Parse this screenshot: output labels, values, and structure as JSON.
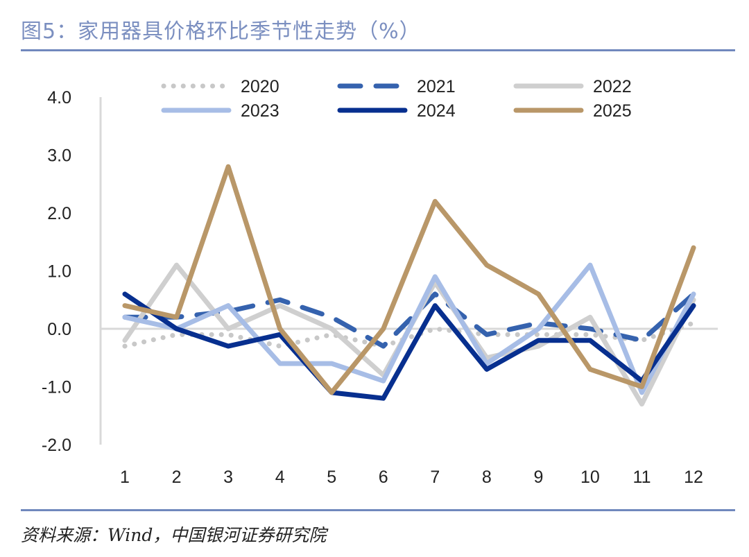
{
  "title": "图5：家用器具价格环比季节性走势（%）",
  "source": "资料来源：Wind，中国银河证券研究院",
  "chart_data": {
    "type": "line",
    "title": "图5：家用器具价格环比季节性走势（%）",
    "xlabel": "",
    "ylabel": "",
    "categories": [
      "1",
      "2",
      "3",
      "4",
      "5",
      "6",
      "7",
      "8",
      "9",
      "10",
      "11",
      "12"
    ],
    "ylim": [
      -2.0,
      4.0
    ],
    "yticks": [
      "4.0",
      "3.0",
      "2.0",
      "1.0",
      "0.0",
      "-1.0",
      "-2.0"
    ],
    "legend_position": "top",
    "grid": false,
    "series": [
      {
        "name": "2020",
        "color": "#c8c8c8",
        "style": "dotted",
        "values": [
          -0.3,
          -0.1,
          -0.1,
          -0.3,
          -0.1,
          -0.3,
          0.0,
          -0.1,
          -0.1,
          -0.1,
          -0.2,
          0.1
        ]
      },
      {
        "name": "2021",
        "color": "#3562ae",
        "style": "dashed",
        "values": [
          0.2,
          0.2,
          0.3,
          0.5,
          0.2,
          -0.3,
          0.6,
          -0.1,
          0.1,
          0.0,
          -0.2,
          0.6
        ]
      },
      {
        "name": "2022",
        "color": "#cfcfcf",
        "style": "solid",
        "values": [
          -0.2,
          1.1,
          0.0,
          0.4,
          0.0,
          -0.8,
          0.8,
          -0.5,
          -0.3,
          0.2,
          -1.3,
          0.5
        ]
      },
      {
        "name": "2023",
        "color": "#a7bde6",
        "style": "solid",
        "values": [
          0.2,
          0.0,
          0.4,
          -0.6,
          -0.6,
          -0.9,
          0.9,
          -0.6,
          0.0,
          1.1,
          -1.1,
          0.6
        ]
      },
      {
        "name": "2024",
        "color": "#072f8f",
        "style": "solid",
        "values": [
          0.6,
          0.0,
          -0.3,
          -0.1,
          -1.1,
          -1.2,
          0.4,
          -0.7,
          -0.2,
          -0.2,
          -0.9,
          0.4
        ]
      },
      {
        "name": "2025",
        "color": "#b99768",
        "style": "solid",
        "values": [
          0.4,
          0.2,
          2.8,
          0.0,
          -1.1,
          0.0,
          2.2,
          1.1,
          0.6,
          -0.7,
          -1.0,
          1.4
        ]
      }
    ]
  }
}
